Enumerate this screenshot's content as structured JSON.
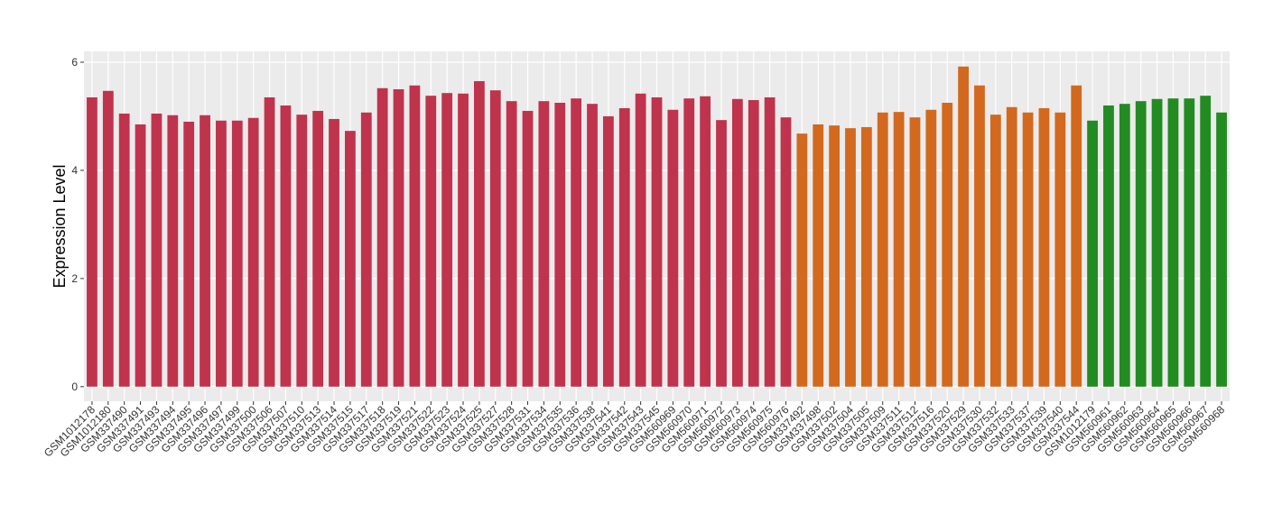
{
  "chart_data": {
    "type": "bar",
    "y_label": "Expression Level",
    "categories": [
      "GSM1012178",
      "GSM1012180",
      "GSM337490",
      "GSM337491",
      "GSM337493",
      "GSM337494",
      "GSM337495",
      "GSM337496",
      "GSM337497",
      "GSM337499",
      "GSM337500",
      "GSM337506",
      "GSM337507",
      "GSM337510",
      "GSM337513",
      "GSM337514",
      "GSM337515",
      "GSM337517",
      "GSM337518",
      "GSM337519",
      "GSM337521",
      "GSM337522",
      "GSM337523",
      "GSM337524",
      "GSM337525",
      "GSM337527",
      "GSM337528",
      "GSM337531",
      "GSM337534",
      "GSM337535",
      "GSM337536",
      "GSM337538",
      "GSM337541",
      "GSM337542",
      "GSM337543",
      "GSM337545",
      "GSM560969",
      "GSM560970",
      "GSM560971",
      "GSM560972",
      "GSM560973",
      "GSM560974",
      "GSM560975",
      "GSM560976",
      "GSM337492",
      "GSM337498",
      "GSM337502",
      "GSM337504",
      "GSM337505",
      "GSM337509",
      "GSM337511",
      "GSM337512",
      "GSM337516",
      "GSM337520",
      "GSM337529",
      "GSM337530",
      "GSM337532",
      "GSM337533",
      "GSM337537",
      "GSM337539",
      "GSM337540",
      "GSM337544",
      "GSM1012179",
      "GSM560961",
      "GSM560962",
      "GSM560963",
      "GSM560964",
      "GSM560965",
      "GSM560966",
      "GSM560967",
      "GSM560968"
    ],
    "values": [
      5.35,
      5.47,
      5.05,
      4.85,
      5.05,
      5.02,
      4.9,
      5.02,
      4.92,
      4.92,
      4.97,
      5.35,
      5.2,
      5.03,
      5.1,
      4.95,
      4.73,
      5.07,
      5.52,
      5.5,
      5.57,
      5.38,
      5.43,
      5.42,
      5.65,
      5.48,
      5.28,
      5.1,
      5.28,
      5.25,
      5.33,
      5.23,
      5.0,
      5.15,
      5.42,
      5.35,
      5.12,
      5.33,
      5.37,
      4.93,
      5.32,
      5.3,
      5.35,
      4.98,
      4.68,
      4.85,
      4.83,
      4.78,
      4.8,
      5.07,
      5.08,
      4.98,
      5.12,
      5.25,
      5.92,
      5.57,
      5.03,
      5.17,
      5.07,
      5.15,
      5.07,
      5.57,
      4.92,
      5.2,
      5.23,
      5.28,
      5.32,
      5.33,
      5.33,
      5.38,
      5.07
    ],
    "colors": [
      "#c0334d",
      "#c0334d",
      "#c0334d",
      "#c0334d",
      "#c0334d",
      "#c0334d",
      "#c0334d",
      "#c0334d",
      "#c0334d",
      "#c0334d",
      "#c0334d",
      "#c0334d",
      "#c0334d",
      "#c0334d",
      "#c0334d",
      "#c0334d",
      "#c0334d",
      "#c0334d",
      "#c0334d",
      "#c0334d",
      "#c0334d",
      "#c0334d",
      "#c0334d",
      "#c0334d",
      "#c0334d",
      "#c0334d",
      "#c0334d",
      "#c0334d",
      "#c0334d",
      "#c0334d",
      "#c0334d",
      "#c0334d",
      "#c0334d",
      "#c0334d",
      "#c0334d",
      "#c0334d",
      "#c0334d",
      "#c0334d",
      "#c0334d",
      "#c0334d",
      "#c0334d",
      "#c0334d",
      "#c0334d",
      "#c0334d",
      "#d2691e",
      "#d2691e",
      "#d2691e",
      "#d2691e",
      "#d2691e",
      "#d2691e",
      "#d2691e",
      "#d2691e",
      "#d2691e",
      "#d2691e",
      "#d2691e",
      "#d2691e",
      "#d2691e",
      "#d2691e",
      "#d2691e",
      "#d2691e",
      "#d2691e",
      "#d2691e",
      "#228b22",
      "#228b22",
      "#228b22",
      "#228b22",
      "#228b22",
      "#228b22",
      "#228b22",
      "#228b22",
      "#228b22"
    ],
    "ylim": [
      -0.27,
      6.2
    ],
    "yticks": [
      0,
      2,
      4,
      6
    ],
    "grid": true
  }
}
